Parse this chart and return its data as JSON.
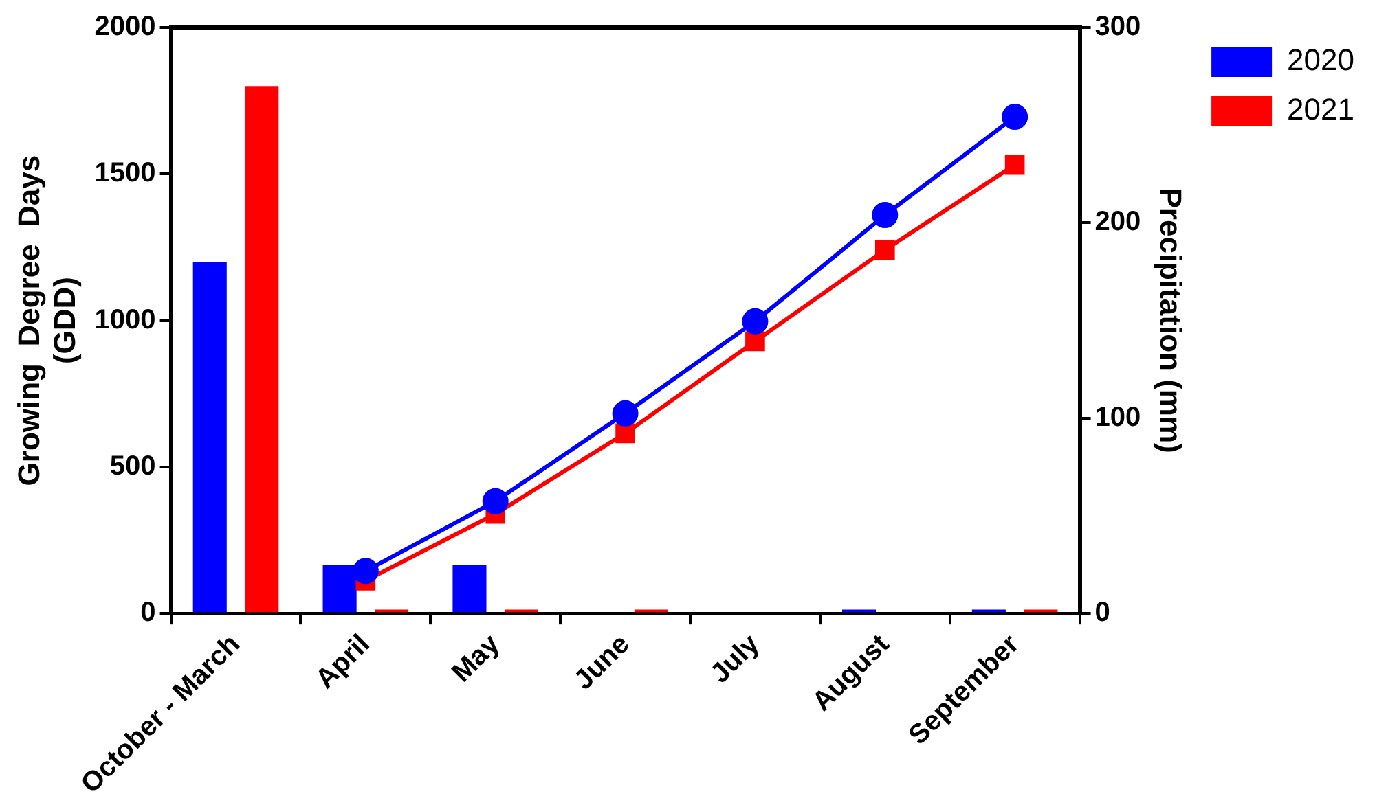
{
  "chart_data": {
    "type": "bar",
    "ylabel": "Growing  Degree  Days\n(GDD)",
    "y2label": "Precipitation (mm)",
    "categories": [
      "October - March",
      "April",
      "May",
      "June",
      "July",
      "August",
      "September"
    ],
    "series": [
      {
        "name": "2020",
        "axis": "y2",
        "color": "#0000ff",
        "values": [
          180,
          25,
          25,
          0,
          0,
          2,
          2
        ]
      },
      {
        "name": "2021",
        "axis": "y2",
        "color": "#ff0000",
        "values": [
          270,
          2,
          2,
          2,
          0,
          0,
          2
        ]
      },
      {
        "type": "line",
        "color": "#0000ff",
        "marker": "circle",
        "values": [
          null,
          145,
          383,
          683,
          997,
          1360,
          1695
        ]
      },
      {
        "type": "line",
        "color": "#ff0000",
        "marker": "square",
        "values": [
          null,
          112,
          340,
          615,
          929,
          1241,
          1531
        ]
      }
    ],
    "ylim": [
      0,
      2000
    ],
    "yticks": [
      0,
      500,
      1000,
      1500,
      2000
    ],
    "y2lim": [
      0,
      300
    ],
    "y2ticks": [
      0,
      100,
      200,
      300
    ],
    "grid": false,
    "legend": "top right",
    "line_style": "solid"
  }
}
